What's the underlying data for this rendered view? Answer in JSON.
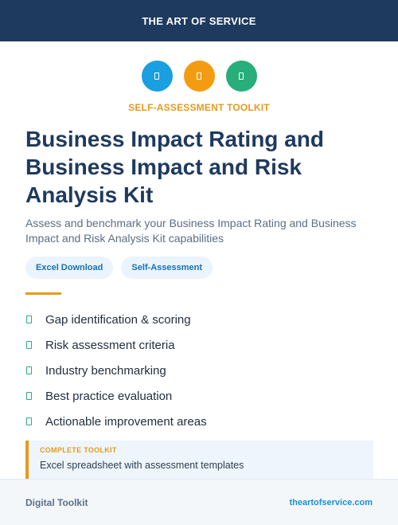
{
  "header": {
    "brand": "THE ART OF SERVICE"
  },
  "icons": [
    {
      "name": "document-icon",
      "color": "#1a9fe0"
    },
    {
      "name": "document-icon",
      "color": "#f39c12"
    },
    {
      "name": "document-icon",
      "color": "#27ae7a"
    }
  ],
  "kicker": "SELF-ASSESSMENT TOOLKIT",
  "title": "Business Impact Rating and Business Impact and Risk Analysis Kit",
  "subtitle": "Assess and benchmark your Business Impact Rating and Business Impact and Risk Analysis Kit capabilities",
  "tags": [
    "Excel Download",
    "Self-Assessment"
  ],
  "features": [
    "Gap identification & scoring",
    "Risk assessment criteria",
    "Industry benchmarking",
    "Best practice evaluation",
    "Actionable improvement areas"
  ],
  "callout": {
    "kicker": "COMPLETE TOOLKIT",
    "text": "Excel spreadsheet with assessment templates"
  },
  "footer": {
    "left": "Digital Toolkit",
    "right": "theartofservice.com"
  }
}
